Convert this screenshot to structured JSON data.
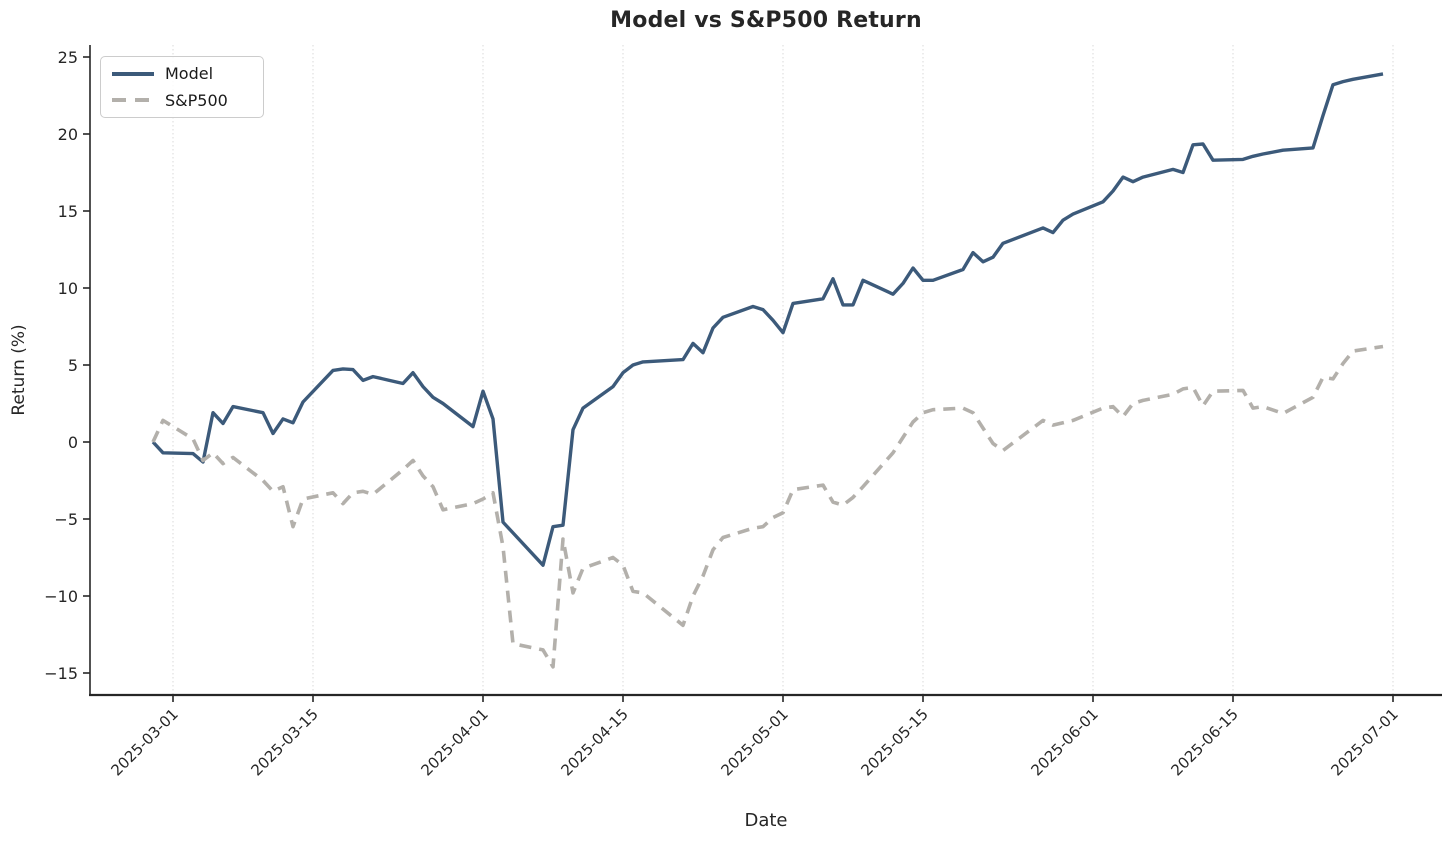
{
  "figure": {
    "title": "Model vs S&P500 Return",
    "xlabel": "Date",
    "ylabel": "Return (%)"
  },
  "chart_data": {
    "type": "line",
    "title": "Model vs S&P500 Return",
    "xlabel": "Date",
    "ylabel": "Return (%)",
    "ylim": [
      -16.5,
      25.8
    ],
    "yticks": [
      -15,
      -10,
      -5,
      0,
      5,
      10,
      15,
      20,
      25
    ],
    "xticks": [
      "2025-03-01",
      "2025-03-15",
      "2025-04-01",
      "2025-04-15",
      "2025-05-01",
      "2025-05-15",
      "2025-06-01",
      "2025-06-15",
      "2025-07-01"
    ],
    "grid": "vertical-dotted",
    "legend_position": "upper-left",
    "x": [
      "2025-02-27",
      "2025-02-28",
      "2025-03-03",
      "2025-03-04",
      "2025-03-05",
      "2025-03-06",
      "2025-03-07",
      "2025-03-10",
      "2025-03-11",
      "2025-03-12",
      "2025-03-13",
      "2025-03-14",
      "2025-03-17",
      "2025-03-18",
      "2025-03-19",
      "2025-03-20",
      "2025-03-21",
      "2025-03-24",
      "2025-03-25",
      "2025-03-26",
      "2025-03-27",
      "2025-03-28",
      "2025-03-31",
      "2025-04-01",
      "2025-04-02",
      "2025-04-03",
      "2025-04-04",
      "2025-04-07",
      "2025-04-08",
      "2025-04-09",
      "2025-04-10",
      "2025-04-11",
      "2025-04-14",
      "2025-04-15",
      "2025-04-16",
      "2025-04-17",
      "2025-04-21",
      "2025-04-22",
      "2025-04-23",
      "2025-04-24",
      "2025-04-25",
      "2025-04-28",
      "2025-04-29",
      "2025-04-30",
      "2025-05-01",
      "2025-05-02",
      "2025-05-05",
      "2025-05-06",
      "2025-05-07",
      "2025-05-08",
      "2025-05-09",
      "2025-05-12",
      "2025-05-13",
      "2025-05-14",
      "2025-05-15",
      "2025-05-16",
      "2025-05-19",
      "2025-05-20",
      "2025-05-21",
      "2025-05-22",
      "2025-05-23",
      "2025-05-27",
      "2025-05-28",
      "2025-05-29",
      "2025-05-30",
      "2025-06-02",
      "2025-06-03",
      "2025-06-04",
      "2025-06-05",
      "2025-06-06",
      "2025-06-09",
      "2025-06-10",
      "2025-06-11",
      "2025-06-12",
      "2025-06-13",
      "2025-06-16",
      "2025-06-17",
      "2025-06-18",
      "2025-06-20",
      "2025-06-23",
      "2025-06-24",
      "2025-06-25",
      "2025-06-26",
      "2025-06-27",
      "2025-06-30"
    ],
    "series": [
      {
        "name": "Model",
        "color": "#3c5a7a",
        "line_style": "solid",
        "values": [
          0.0,
          -0.7,
          -0.75,
          -1.3,
          1.9,
          1.2,
          2.3,
          1.9,
          0.55,
          1.5,
          1.25,
          2.6,
          4.65,
          4.75,
          4.7,
          4.0,
          4.25,
          3.8,
          4.5,
          3.6,
          2.9,
          2.5,
          1.0,
          3.3,
          1.5,
          -5.2,
          -5.9,
          -8.0,
          -5.5,
          -5.4,
          0.8,
          2.2,
          3.6,
          4.5,
          5.0,
          5.2,
          5.35,
          6.4,
          5.8,
          7.4,
          8.1,
          8.8,
          8.6,
          7.9,
          7.1,
          9.0,
          9.3,
          10.6,
          8.9,
          8.9,
          10.5,
          9.6,
          10.3,
          11.3,
          10.5,
          10.5,
          11.2,
          12.3,
          11.7,
          12.0,
          12.9,
          13.9,
          13.6,
          14.4,
          14.8,
          15.6,
          16.3,
          17.2,
          16.9,
          17.2,
          17.7,
          17.5,
          19.3,
          19.35,
          18.3,
          18.35,
          18.55,
          18.7,
          18.95,
          19.1,
          21.2,
          23.2,
          23.4,
          23.55,
          23.9
        ]
      },
      {
        "name": "S&P500",
        "color": "#b3b0ab",
        "line_style": "dashed",
        "values": [
          0.0,
          1.4,
          0.2,
          -1.2,
          -0.7,
          -1.4,
          -1.0,
          -2.5,
          -3.2,
          -2.9,
          -5.5,
          -3.7,
          -3.3,
          -4.0,
          -3.3,
          -3.2,
          -3.4,
          -1.8,
          -1.2,
          -2.2,
          -2.9,
          -4.4,
          -4.0,
          -3.7,
          -3.3,
          -6.8,
          -13.1,
          -13.5,
          -14.6,
          -6.3,
          -9.8,
          -8.2,
          -7.5,
          -8.0,
          -9.7,
          -9.8,
          -11.9,
          -10.0,
          -8.7,
          -7.0,
          -6.2,
          -5.6,
          -5.5,
          -4.9,
          -4.6,
          -3.1,
          -2.8,
          -3.9,
          -4.1,
          -3.6,
          -2.9,
          -0.7,
          0.3,
          1.3,
          1.9,
          2.1,
          2.2,
          1.9,
          0.9,
          -0.1,
          -0.55,
          1.4,
          1.1,
          1.25,
          1.4,
          2.2,
          2.3,
          1.65,
          2.5,
          2.7,
          3.1,
          3.45,
          3.55,
          2.35,
          3.3,
          3.35,
          2.2,
          2.3,
          1.85,
          2.9,
          4.2,
          4.1,
          5.1,
          5.9,
          6.2
        ]
      }
    ],
    "colors": {
      "model_line": "#3c5a7a",
      "sp500_line": "#b3b0ab",
      "spine": "#262626",
      "grid": "#d9d9d9",
      "tick_label": "#262626"
    }
  }
}
